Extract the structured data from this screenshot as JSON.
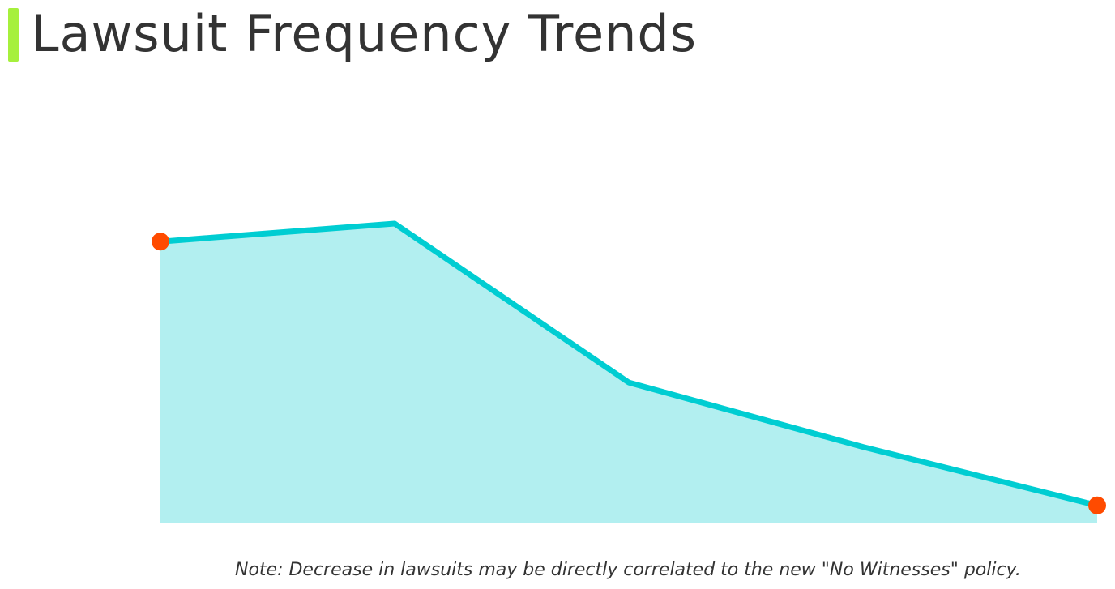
{
  "title": "Lawsuit Frequency Trends",
  "note": "Note: Decrease in lawsuits may be directly correlated to the new \"No Witnesses\" policy.",
  "colors": {
    "accent_bar": "#a6f03c",
    "line": "#00cdd2",
    "area_fill": "#b2eff0",
    "endpoint_marker": "#ff4b00"
  },
  "chart_data": {
    "type": "area",
    "title": "",
    "xlabel": "",
    "ylabel": "",
    "grid": false,
    "legend": "none",
    "x": [
      1,
      2,
      3,
      4,
      5
    ],
    "values": [
      94.0,
      100.0,
      47.0,
      25.5,
      6.0
    ],
    "ylim": [
      0,
      100
    ],
    "axes_visible": false,
    "endpoint_markers": true
  }
}
